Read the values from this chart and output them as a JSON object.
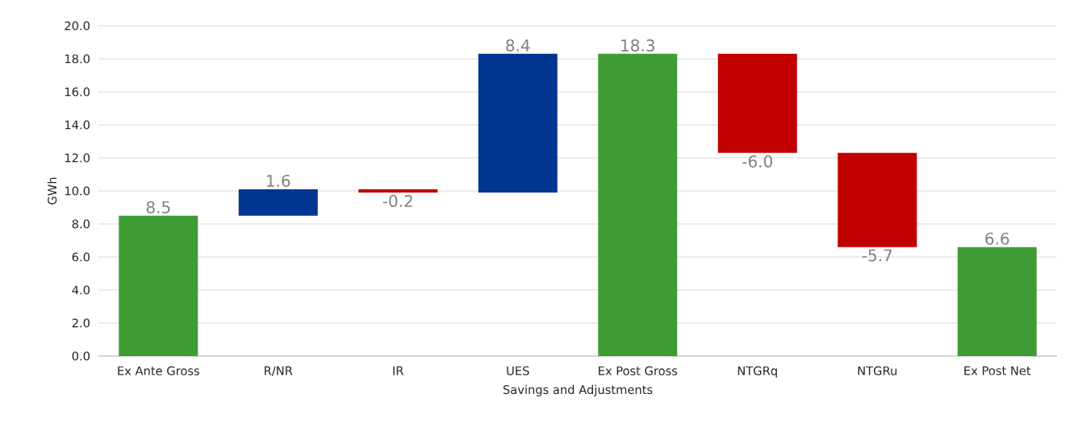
{
  "chart_data": {
    "type": "bar",
    "xlabel": "Savings and Adjustments",
    "ylabel": "GWh",
    "categories": [
      "Ex Ante Gross",
      "R/NR",
      "IR",
      "UES",
      "Ex Post Gross",
      "NTGRq",
      "NTGRu",
      "Ex Post Net"
    ],
    "values": [
      8.5,
      1.6,
      -0.2,
      8.4,
      18.3,
      -6.0,
      -5.7,
      6.6
    ],
    "base": [
      0,
      8.5,
      10.1,
      9.9,
      0,
      18.3,
      12.3,
      0
    ],
    "colors": [
      "#3f9c35",
      "#003591",
      "#c00000",
      "#003591",
      "#3f9c35",
      "#c00000",
      "#c00000",
      "#3f9c35"
    ],
    "ylim": [
      0,
      20
    ],
    "yticks": [
      {
        "value": 0,
        "label": "0.0"
      },
      {
        "value": 2,
        "label": "2.0"
      },
      {
        "value": 4,
        "label": "4.0"
      },
      {
        "value": 6,
        "label": "6.0"
      },
      {
        "value": 8,
        "label": "8.0"
      },
      {
        "value": 10,
        "label": "10.0"
      },
      {
        "value": 12,
        "label": "12.0"
      },
      {
        "value": 14,
        "label": "14.0"
      },
      {
        "value": 16,
        "label": "16.0"
      },
      {
        "value": 18,
        "label": "18.0"
      },
      {
        "value": 20,
        "label": "20.0"
      }
    ],
    "value_labels": [
      "8.5",
      "1.6",
      "-0.2",
      "8.4",
      "18.3",
      "-6.0",
      "-5.7",
      "6.6"
    ],
    "grid": "y"
  }
}
